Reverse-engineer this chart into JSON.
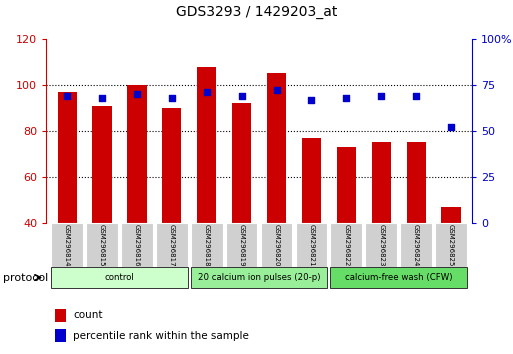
{
  "title": "GDS3293 / 1429203_at",
  "samples": [
    "GSM296814",
    "GSM296815",
    "GSM296816",
    "GSM296817",
    "GSM296818",
    "GSM296819",
    "GSM296820",
    "GSM296821",
    "GSM296822",
    "GSM296823",
    "GSM296824",
    "GSM296825"
  ],
  "bar_values": [
    97,
    91,
    100,
    90,
    108,
    92,
    105,
    77,
    73,
    75,
    75,
    47
  ],
  "dot_values_pct": [
    69,
    68,
    70,
    68,
    71,
    69,
    72,
    67,
    68,
    69,
    69,
    52
  ],
  "bar_color": "#cc0000",
  "dot_color": "#0000cc",
  "ylim_left": [
    40,
    120
  ],
  "ylim_right": [
    0,
    100
  ],
  "yticks_left": [
    40,
    60,
    80,
    100,
    120
  ],
  "yticks_right": [
    0,
    25,
    50,
    75,
    100
  ],
  "yticklabels_right": [
    "0",
    "25",
    "50",
    "75",
    "100%"
  ],
  "groups": [
    {
      "label": "control",
      "start": 0,
      "end": 3,
      "color": "#ccffcc"
    },
    {
      "label": "20 calcium ion pulses (20-p)",
      "start": 4,
      "end": 7,
      "color": "#99ee99"
    },
    {
      "label": "calcium-free wash (CFW)",
      "start": 8,
      "end": 11,
      "color": "#66dd66"
    }
  ],
  "protocol_label": "protocol",
  "legend_count_label": "count",
  "legend_pct_label": "percentile rank within the sample",
  "bar_width": 0.55,
  "background_color": "#ffffff",
  "grid_color": "#000000",
  "tick_label_bg": "#d0d0d0"
}
